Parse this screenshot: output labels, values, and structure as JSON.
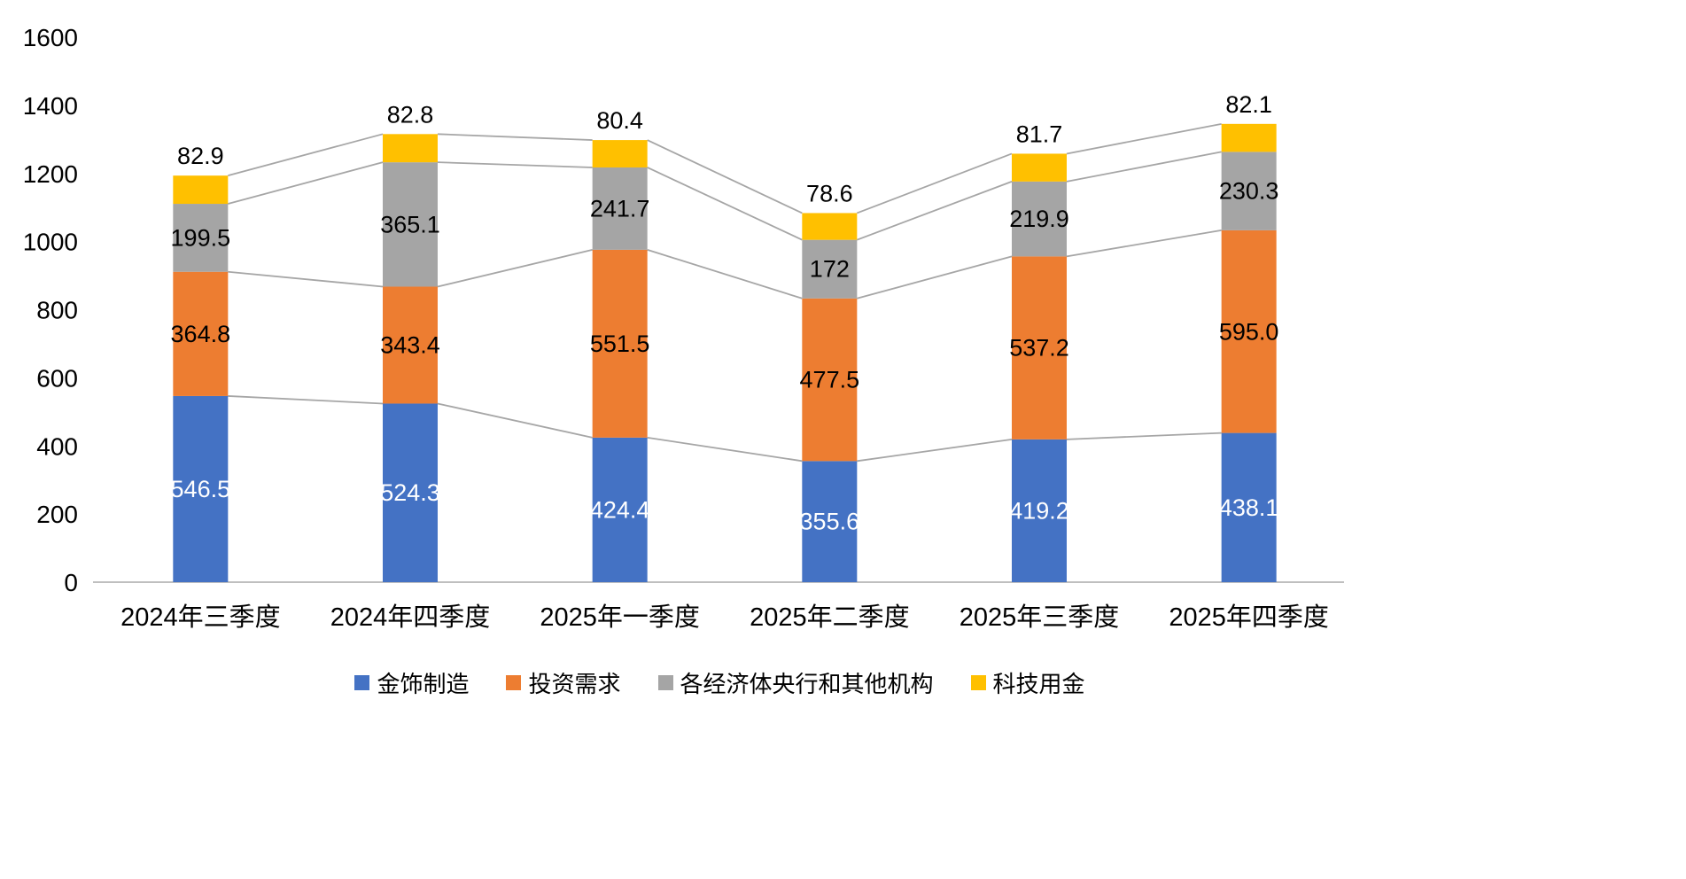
{
  "chart_data": {
    "type": "bar",
    "stacked": true,
    "title": "",
    "xlabel": "",
    "ylabel": "",
    "categories": [
      "2024年三季度",
      "2024年四季度",
      "2025年一季度",
      "2025年二季度",
      "2025年三季度",
      "2025年四季度"
    ],
    "series": [
      {
        "name": "金饰制造",
        "color": "#4472C4",
        "label_color": "#FFFFFF",
        "label_position": "inside",
        "values": [
          546.5,
          524.3,
          424.4,
          355.6,
          419.2,
          438.1
        ],
        "labels": [
          "546.5",
          "524.3",
          "424.4",
          "355.6",
          "419.2",
          "438.1"
        ]
      },
      {
        "name": "投资需求",
        "color": "#ED7D31",
        "label_color": "#000000",
        "label_position": "inside",
        "values": [
          364.8,
          343.4,
          551.5,
          477.5,
          537.2,
          595.0
        ],
        "labels": [
          "364.8",
          "343.4",
          "551.5",
          "477.5",
          "537.2",
          "595.0"
        ]
      },
      {
        "name": "各经济体央行和其他机构",
        "color": "#A5A5A5",
        "label_color": "#000000",
        "label_position": "inside",
        "values": [
          199.5,
          365.1,
          241.7,
          172,
          219.9,
          230.3
        ],
        "labels": [
          "199.5",
          "365.1",
          "241.7",
          "172",
          "219.9",
          "230.3"
        ]
      },
      {
        "name": "科技用金",
        "color": "#FFC000",
        "label_color": "#000000",
        "label_position": "above",
        "values": [
          82.9,
          82.8,
          80.4,
          78.6,
          81.7,
          82.1
        ],
        "labels": [
          "82.9",
          "82.8",
          "80.4",
          "78.6",
          "81.7",
          "82.1"
        ]
      }
    ],
    "y_axis": {
      "min": 0,
      "max": 1600,
      "tick_step": 200,
      "ticks": [
        0,
        200,
        400,
        600,
        800,
        1000,
        1200,
        1400,
        1600
      ]
    },
    "grid": false,
    "connector_line_color": "#A6A6A6",
    "axis_line_color": "#BFBFBF",
    "legend": {
      "position": "bottom",
      "items": [
        "金饰制造",
        "投资需求",
        "各经济体央行和其他机构",
        "科技用金"
      ]
    }
  }
}
